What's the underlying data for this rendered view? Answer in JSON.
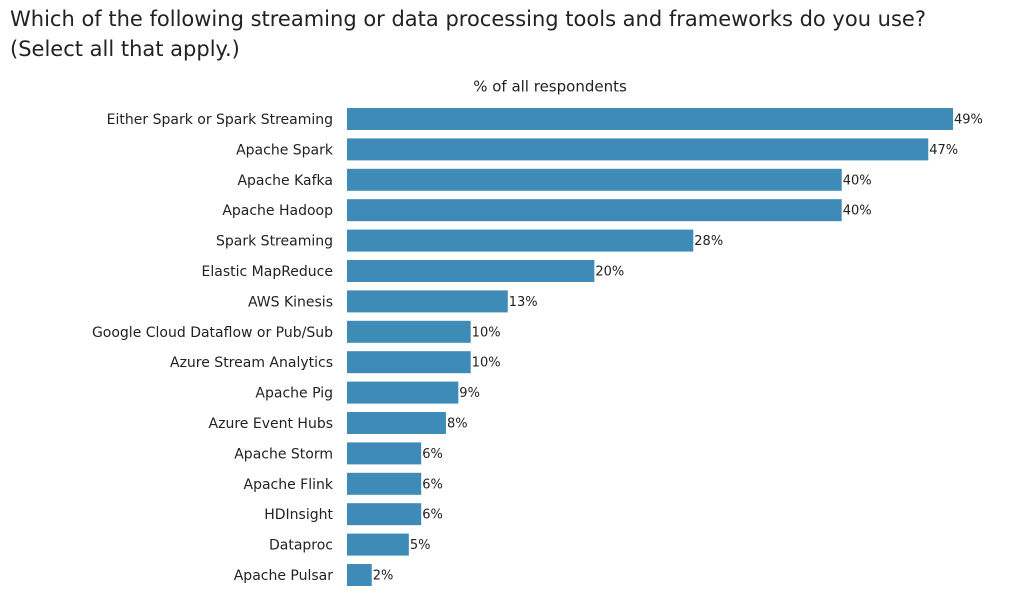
{
  "chart_data": {
    "type": "bar",
    "orientation": "horizontal",
    "title": "Which of the following streaming or data processing tools and frameworks do you use?",
    "subtitle": "(Select all that apply.)",
    "x_label": "% of all respondents",
    "categories": [
      "Either Spark or Spark Streaming",
      "Apache Spark",
      "Apache Kafka",
      "Apache Hadoop",
      "Spark Streaming",
      "Elastic MapReduce",
      "AWS Kinesis",
      "Google Cloud Dataflow or Pub/Sub",
      "Azure Stream Analytics",
      "Apache Pig",
      "Azure Event Hubs",
      "Apache Storm",
      "Apache Flink",
      "HDInsight",
      "Dataproc",
      "Apache Pulsar"
    ],
    "values": [
      49,
      47,
      40,
      40,
      28,
      20,
      13,
      10,
      10,
      9,
      8,
      6,
      6,
      6,
      5,
      2
    ],
    "value_labels": [
      "49%",
      "47%",
      "40%",
      "40%",
      "28%",
      "20%",
      "13%",
      "10%",
      "10%",
      "9%",
      "8%",
      "6%",
      "6%",
      "6%",
      "5%",
      "2%"
    ],
    "color": "#3d8bb6"
  }
}
